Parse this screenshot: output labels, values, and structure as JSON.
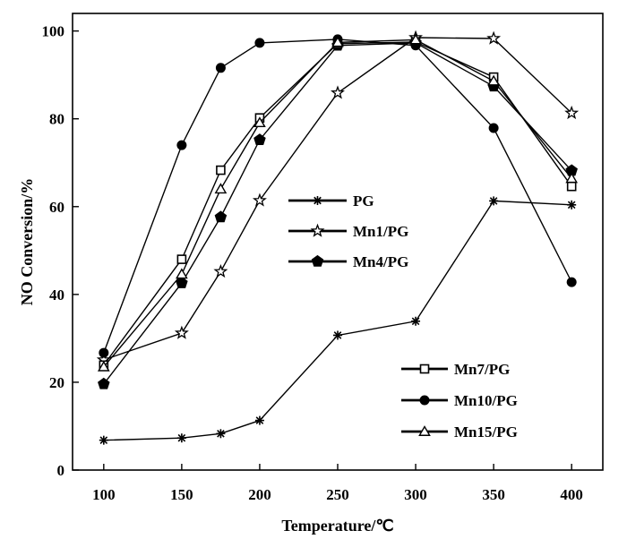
{
  "chart_data": {
    "type": "line",
    "title": "",
    "xlabel": "Temperature/℃",
    "ylabel": "NO Conversion/%",
    "xlim": [
      80,
      420
    ],
    "ylim": [
      0,
      104
    ],
    "x_ticks": [
      100,
      150,
      200,
      250,
      300,
      350,
      400
    ],
    "y_ticks": [
      0,
      20,
      40,
      60,
      80,
      100
    ],
    "x_tick_labels": [
      "100",
      "150",
      "200",
      "250",
      "300",
      "350",
      "400"
    ],
    "y_tick_labels": [
      "0",
      "20",
      "40",
      "60",
      "80",
      "100"
    ],
    "grid": false,
    "x": [
      100,
      150,
      175,
      200,
      250,
      300,
      350,
      400
    ],
    "series": [
      {
        "name": "PG",
        "marker": "asterisk",
        "values": [
          6.8,
          7.3,
          8.3,
          11.3,
          30.7,
          33.9,
          61.3,
          60.4
        ]
      },
      {
        "name": "Mn1/PG",
        "marker": "star",
        "values": [
          25.1,
          31.2,
          45.2,
          61.4,
          85.9,
          98.5,
          98.3,
          81.3
        ]
      },
      {
        "name": "Mn4/PG",
        "marker": "pentagon",
        "values": [
          19.6,
          42.6,
          57.6,
          75.2,
          96.7,
          97.3,
          87.4,
          68.2
        ]
      },
      {
        "name": "Mn7/PG",
        "marker": "square-open",
        "values": [
          23.9,
          48.0,
          68.3,
          80.2,
          97.1,
          97.5,
          89.5,
          64.6
        ]
      },
      {
        "name": "Mn10/PG",
        "marker": "circle",
        "values": [
          26.7,
          74.0,
          91.6,
          97.3,
          98.1,
          96.7,
          77.9,
          42.8
        ]
      },
      {
        "name": "Mn15/PG",
        "marker": "triangle-open",
        "values": [
          23.5,
          44.6,
          64.0,
          79.1,
          97.4,
          98.0,
          88.6,
          66.4
        ]
      }
    ],
    "legend": [
      {
        "group": "upper",
        "placement": "center-left",
        "entries": [
          "PG",
          "Mn1/PG",
          "Mn4/PG"
        ]
      },
      {
        "group": "lower",
        "placement": "bottom-right",
        "entries": [
          "Mn7/PG",
          "Mn10/PG",
          "Mn15/PG"
        ]
      }
    ]
  }
}
